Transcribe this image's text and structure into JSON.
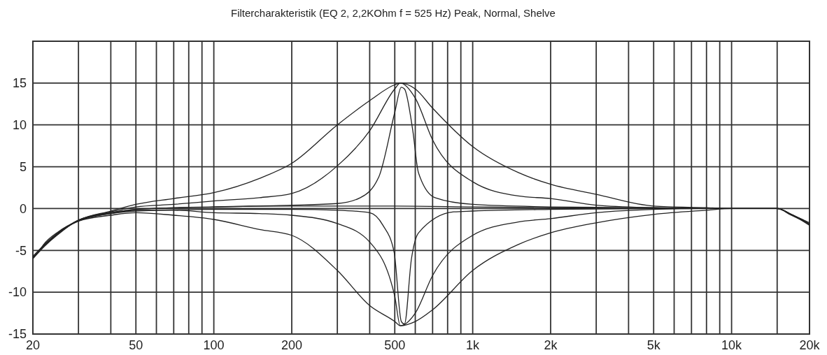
{
  "chart_data": {
    "type": "line",
    "title": "Filtercharakteristik (EQ 2, 2,2KOhm f = 525 Hz) Peak, Normal, Shelve",
    "log": "x",
    "grid": true,
    "xlim": [
      20,
      20000
    ],
    "ylim": [
      -15,
      20
    ],
    "xticks": [
      20,
      {
        "value": 30,
        "label": null
      },
      {
        "value": 40,
        "label": null
      },
      50,
      {
        "value": 60,
        "label": null
      },
      {
        "value": 70,
        "label": null
      },
      {
        "value": 80,
        "label": null
      },
      {
        "value": 90,
        "label": null
      },
      100,
      200,
      {
        "value": 300,
        "label": null
      },
      {
        "value": 400,
        "label": null
      },
      500,
      {
        "value": 600,
        "label": null
      },
      {
        "value": 700,
        "label": null
      },
      {
        "value": 800,
        "label": null
      },
      {
        "value": 900,
        "label": null
      },
      {
        "value": 1000,
        "label": "1k"
      },
      {
        "value": 2000,
        "label": "2k"
      },
      {
        "value": 3000,
        "label": null
      },
      {
        "value": 4000,
        "label": null
      },
      {
        "value": 5000,
        "label": "5k"
      },
      {
        "value": 6000,
        "label": null
      },
      {
        "value": 7000,
        "label": null
      },
      {
        "value": 8000,
        "label": null
      },
      {
        "value": 9000,
        "label": null
      },
      {
        "value": 10000,
        "label": "10k"
      },
      {
        "value": 15000,
        "label": null
      },
      {
        "value": 20000,
        "label": "20k"
      }
    ],
    "yticks": [
      -15,
      -10,
      -5,
      0,
      5,
      10,
      15
    ],
    "series": [
      {
        "color": "#222222",
        "x": [
          20,
          22,
          25,
          30,
          40,
          50,
          70,
          100,
          150,
          200,
          300,
          400,
          500,
          525,
          600,
          700,
          1000,
          1500,
          2000,
          3000,
          5000,
          8000,
          10000,
          15000,
          17000,
          20000
        ],
        "values": [
          -5.8,
          -4.5,
          -3,
          -1.4,
          -0.3,
          0.5,
          1.2,
          1.9,
          3.6,
          5.4,
          10,
          12.9,
          14.8,
          15,
          14.3,
          12,
          7.4,
          4.3,
          2.9,
          1.7,
          0.3,
          0.1,
          0,
          0,
          -0.7,
          -1.8
        ]
      },
      {
        "color": "#222222",
        "x": [
          21,
          22,
          25,
          30,
          40,
          50,
          70,
          100,
          150,
          200,
          300,
          400,
          500,
          525,
          600,
          700,
          1000,
          1500,
          2000,
          3000,
          5000,
          8000,
          10000,
          15000,
          17000,
          19000
        ],
        "values": [
          -5.2,
          -4.3,
          -2.8,
          -1.5,
          -0.8,
          -0.5,
          -0.8,
          -1.3,
          -2.5,
          -3.2,
          -7.4,
          -11.6,
          -13.5,
          -14,
          -13.5,
          -12.1,
          -7.4,
          -4.3,
          -2.9,
          -1.7,
          -0.7,
          -0.2,
          0,
          0,
          -0.8,
          -1.5
        ]
      },
      {
        "color": "#222222",
        "x": [
          20,
          22,
          25,
          30,
          40,
          50,
          70,
          100,
          150,
          200,
          300,
          400,
          500,
          525,
          600,
          700,
          1000,
          1500,
          2000,
          3000,
          5000,
          8000,
          10000,
          15000,
          17000,
          20000
        ],
        "values": [
          -5.7,
          -4.4,
          -2.9,
          -1.4,
          -0.4,
          0.2,
          0.5,
          0.9,
          1.3,
          1.8,
          5.1,
          9.3,
          14.3,
          15,
          13.2,
          8.2,
          3.2,
          1.5,
          1.2,
          0.4,
          0.1,
          0,
          0,
          0,
          -0.7,
          -1.7
        ]
      },
      {
        "color": "#222222",
        "x": [
          21,
          22,
          25,
          30,
          40,
          50,
          70,
          100,
          150,
          200,
          300,
          400,
          500,
          525,
          600,
          700,
          1000,
          1500,
          2000,
          3000,
          5000,
          8000,
          10000,
          15000,
          17000,
          19000
        ],
        "values": [
          -5.1,
          -4.4,
          -2.9,
          -1.5,
          -0.6,
          -0.2,
          -0.2,
          -0.5,
          -0.6,
          -0.8,
          -1.8,
          -4,
          -10.5,
          -14,
          -12.5,
          -8,
          -3.2,
          -1.6,
          -1.2,
          -0.5,
          -0.1,
          0,
          0,
          0,
          -0.7,
          -1.4
        ]
      },
      {
        "color": "#222222",
        "x": [
          20,
          22,
          25,
          30,
          40,
          50,
          100,
          200,
          300,
          368,
          434,
          500,
          530,
          545,
          587,
          617,
          715,
          1000,
          2000,
          5000,
          10000,
          15000,
          17000,
          20000
        ],
        "values": [
          -5.9,
          -4.6,
          -3.1,
          -1.4,
          -0.5,
          -0.1,
          0.2,
          0.4,
          0.6,
          1.3,
          3.8,
          11.5,
          14.5,
          14.3,
          9.3,
          4.3,
          1.3,
          0.5,
          0.2,
          0.1,
          0,
          0,
          -0.7,
          -1.9
        ]
      },
      {
        "color": "#222222",
        "x": [
          22,
          23,
          25,
          30,
          40,
          50,
          100,
          200,
          300,
          400,
          450,
          497,
          530,
          545,
          580,
          618,
          844,
          1000,
          2000,
          5000,
          10000,
          15000,
          17000,
          18000
        ],
        "values": [
          -4.5,
          -3.9,
          -3,
          -1.4,
          -0.6,
          -0.3,
          -0.1,
          -0.1,
          -0.2,
          -0.5,
          -2,
          -5.2,
          -13.5,
          -13.8,
          -6,
          -2.9,
          -0.4,
          -0.3,
          -0.1,
          0,
          0,
          0,
          -0.7,
          -1.1
        ]
      },
      {
        "color": "#222222",
        "x": [
          20,
          22,
          25,
          30,
          40,
          50,
          100,
          200,
          500,
          1000,
          2000,
          5000,
          10000,
          15000,
          17000,
          20000
        ],
        "values": [
          -6,
          -4.6,
          -3,
          -1.4,
          -0.5,
          -0.1,
          0.2,
          0.3,
          0.3,
          0.2,
          0.1,
          0,
          0,
          0,
          -0.7,
          -2
        ]
      }
    ]
  }
}
